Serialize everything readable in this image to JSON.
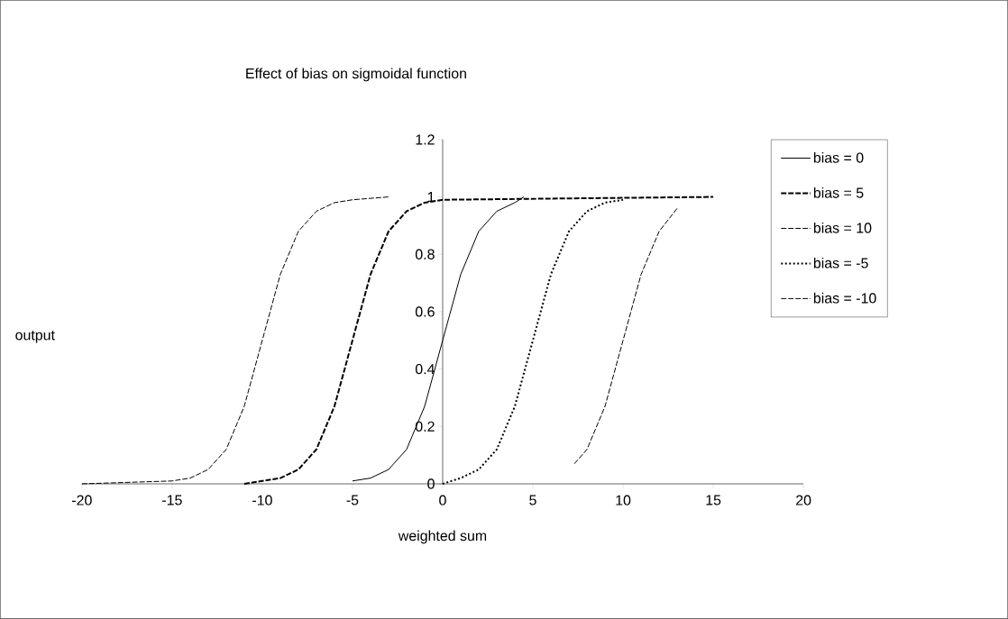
{
  "chart_data": {
    "type": "line",
    "title": "Effect of bias on sigmoidal function",
    "xlabel": "weighted sum",
    "ylabel": "output",
    "xlim": [
      -20,
      20
    ],
    "xticks": [
      -20,
      -15,
      -10,
      -5,
      0,
      5,
      10,
      15,
      20
    ],
    "ylim": [
      0,
      1.2
    ],
    "yticks": [
      0,
      0.2,
      0.4,
      0.6,
      0.8,
      1,
      1.2
    ],
    "grid": false,
    "legend": "right",
    "marker": "none",
    "series": [
      {
        "name": "bias = 0",
        "color": "#000000",
        "line_style": "solid",
        "x": [
          -5,
          -4,
          -3,
          -2,
          -1,
          0,
          1,
          2,
          3,
          4,
          4.5
        ],
        "values": [
          0.01,
          0.02,
          0.05,
          0.12,
          0.27,
          0.5,
          0.73,
          0.88,
          0.95,
          0.98,
          1
        ]
      },
      {
        "name": "bias = 5",
        "color": "#000000",
        "line_style": "dashed",
        "x": [
          -11,
          -10,
          -9,
          -8,
          -7,
          -6,
          -5,
          -4,
          -3,
          -2,
          -1,
          0,
          15
        ],
        "values": [
          0,
          0.01,
          0.02,
          0.05,
          0.12,
          0.27,
          0.5,
          0.73,
          0.88,
          0.95,
          0.98,
          0.99,
          1
        ]
      },
      {
        "name": "bias = 10",
        "color": "#000000",
        "line_style": "dashed",
        "x": [
          -20,
          -15,
          -14,
          -13,
          -12,
          -11,
          -10,
          -9,
          -8,
          -7,
          -6,
          -5,
          -3
        ],
        "values": [
          0,
          0.01,
          0.02,
          0.05,
          0.12,
          0.27,
          0.5,
          0.73,
          0.88,
          0.95,
          0.98,
          0.99,
          1
        ]
      },
      {
        "name": "bias = -5",
        "color": "#000000",
        "line_style": "dotted",
        "x": [
          0,
          1,
          2,
          3,
          4,
          5,
          6,
          7,
          8,
          9,
          10
        ],
        "values": [
          0,
          0.02,
          0.05,
          0.12,
          0.27,
          0.5,
          0.73,
          0.88,
          0.95,
          0.98,
          0.99
        ]
      },
      {
        "name": "bias = -10",
        "color": "#000000",
        "line_style": "dashed",
        "x": [
          7.3,
          8,
          9,
          10,
          11,
          12,
          13
        ],
        "values": [
          0.07,
          0.12,
          0.27,
          0.5,
          0.73,
          0.88,
          0.96
        ]
      }
    ]
  }
}
